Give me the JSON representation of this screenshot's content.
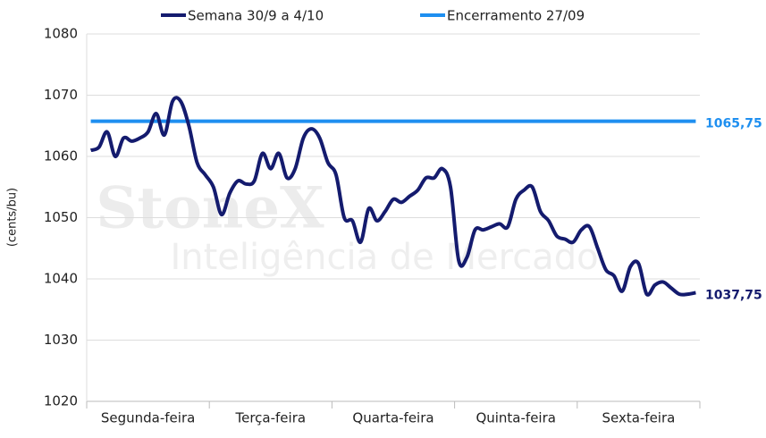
{
  "chart_data": {
    "type": "line",
    "y_label": "(cents/bu)",
    "watermark": [
      "StoneX",
      "Inteligência de Mercado"
    ],
    "categories": [
      null,
      null,
      null,
      null,
      null,
      null,
      null,
      "Segunda-feira",
      null,
      null,
      null,
      null,
      null,
      null,
      null,
      null,
      null,
      null,
      null,
      null,
      null,
      null,
      "Terça-feira",
      null,
      null,
      null,
      null,
      null,
      null,
      null,
      null,
      null,
      null,
      null,
      null,
      null,
      null,
      "Quarta-feira",
      null,
      null,
      null,
      null,
      null,
      null,
      null,
      null,
      null,
      null,
      null,
      null,
      null,
      null,
      "Quinta-feira",
      null,
      null,
      null,
      null,
      null,
      null,
      null,
      null,
      null,
      null,
      null,
      null,
      null,
      null,
      "Sexta-feira",
      null,
      null,
      null,
      null,
      null,
      null,
      null
    ],
    "ylim": [
      1020,
      1080
    ],
    "yticks": [
      1020,
      1030,
      1040,
      1050,
      1060,
      1070,
      1080
    ],
    "grid": true,
    "series": [
      {
        "name": "Semana 30/9 a 4/10",
        "color": "#141b6e",
        "end_label": "1037,75",
        "values": [
          1061,
          1061.5,
          1064,
          1060,
          1063,
          1062.5,
          1063,
          1064,
          1067,
          1063.5,
          1069,
          1069,
          1065,
          1059,
          1057,
          1055,
          1050.5,
          1054,
          1056,
          1055.5,
          1056,
          1060.5,
          1058,
          1060.5,
          1056.5,
          1058,
          1063,
          1064.5,
          1063,
          1059,
          1057,
          1050,
          1049.5,
          1046,
          1051.5,
          1049.5,
          1051,
          1053,
          1052.5,
          1053.5,
          1054.5,
          1056.5,
          1056.5,
          1058,
          1055,
          1043,
          1043.5,
          1048,
          1048,
          1048.5,
          1049,
          1048.5,
          1053,
          1054.5,
          1055,
          1051,
          1049.5,
          1047,
          1046.5,
          1046,
          1048,
          1048.5,
          1045,
          1041.5,
          1040.5,
          1038,
          1042,
          1042.5,
          1037.5,
          1039,
          1039.5,
          1038.5,
          1037.5,
          1037.5,
          1037.75
        ]
      },
      {
        "name": "Encerramento 27/09",
        "color": "#1e8ff0",
        "end_label": "1065,75",
        "values": [
          1065.75,
          1065.75,
          1065.75,
          1065.75,
          1065.75,
          1065.75,
          1065.75,
          1065.75,
          1065.75,
          1065.75,
          1065.75,
          1065.75,
          1065.75,
          1065.75,
          1065.75,
          1065.75,
          1065.75,
          1065.75,
          1065.75,
          1065.75,
          1065.75,
          1065.75,
          1065.75,
          1065.75,
          1065.75,
          1065.75,
          1065.75,
          1065.75,
          1065.75,
          1065.75,
          1065.75,
          1065.75,
          1065.75,
          1065.75,
          1065.75,
          1065.75,
          1065.75,
          1065.75,
          1065.75,
          1065.75,
          1065.75,
          1065.75,
          1065.75,
          1065.75,
          1065.75,
          1065.75,
          1065.75,
          1065.75,
          1065.75,
          1065.75,
          1065.75,
          1065.75,
          1065.75,
          1065.75,
          1065.75,
          1065.75,
          1065.75,
          1065.75,
          1065.75,
          1065.75,
          1065.75,
          1065.75,
          1065.75,
          1065.75,
          1065.75,
          1065.75,
          1065.75,
          1065.75,
          1065.75,
          1065.75,
          1065.75,
          1065.75,
          1065.75,
          1065.75,
          1065.75
        ]
      }
    ]
  }
}
